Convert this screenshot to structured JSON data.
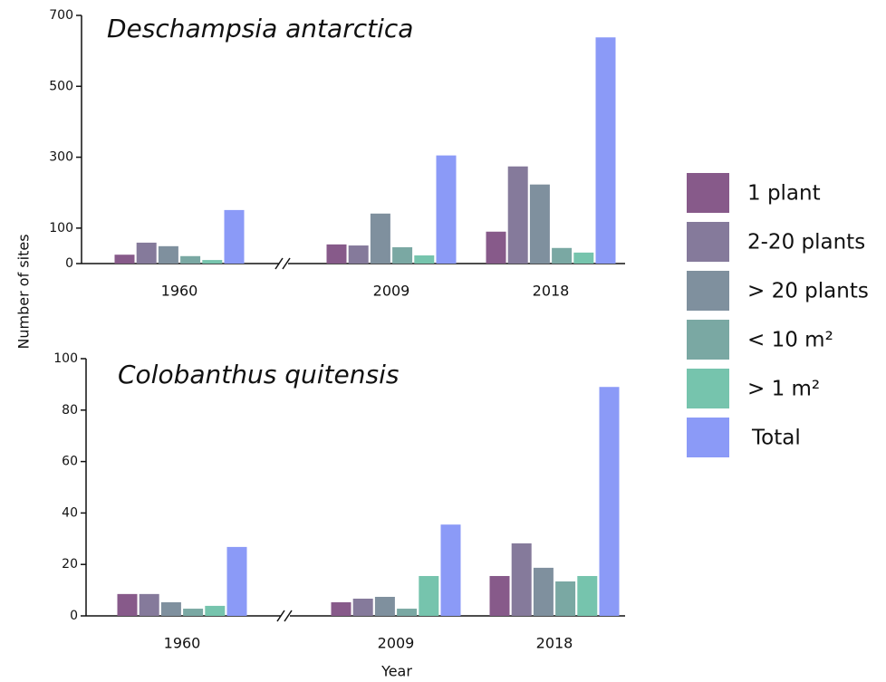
{
  "chart_data": [
    {
      "type": "bar",
      "title": "Deschampsia antarctica",
      "ylabel": "Number of sites",
      "categories": [
        "1960",
        "2009",
        "2018"
      ],
      "ylim": [
        0,
        700
      ],
      "yticks": [
        0,
        100,
        300,
        500,
        700
      ],
      "series": [
        {
          "name": "1 plant",
          "color": "#875a8a",
          "values": [
            25,
            54,
            90
          ]
        },
        {
          "name": "2-20 plants",
          "color": "#857a9b",
          "values": [
            59,
            51,
            274
          ]
        },
        {
          "name": "> 20 plants",
          "color": "#7f909e",
          "values": [
            49,
            141,
            223
          ]
        },
        {
          "name": "< 10 m²",
          "color": "#7aa8a3",
          "values": [
            21,
            46,
            44
          ]
        },
        {
          "name": "> 1 m²",
          "color": "#76c4ad",
          "values": [
            10,
            23,
            31
          ]
        },
        {
          "name": "Total",
          "color": "#8b9af7",
          "values": [
            151,
            305,
            638
          ]
        }
      ]
    },
    {
      "type": "bar",
      "title": "Colobanthus quitensis",
      "xlabel": "Year",
      "categories": [
        "1960",
        "2009",
        "2018"
      ],
      "ylim": [
        0,
        100
      ],
      "yticks": [
        0,
        20,
        40,
        60,
        80,
        100
      ],
      "series": [
        {
          "values": [
            8.5,
            5.3,
            15.5
          ]
        },
        {
          "values": [
            8.5,
            6.7,
            28.2
          ]
        },
        {
          "values": [
            5.3,
            7.4,
            18.7
          ]
        },
        {
          "values": [
            2.8,
            2.8,
            13.4
          ]
        },
        {
          "values": [
            3.9,
            15.5,
            15.5
          ]
        },
        {
          "values": [
            26.8,
            35.5,
            89
          ]
        }
      ]
    }
  ]
}
